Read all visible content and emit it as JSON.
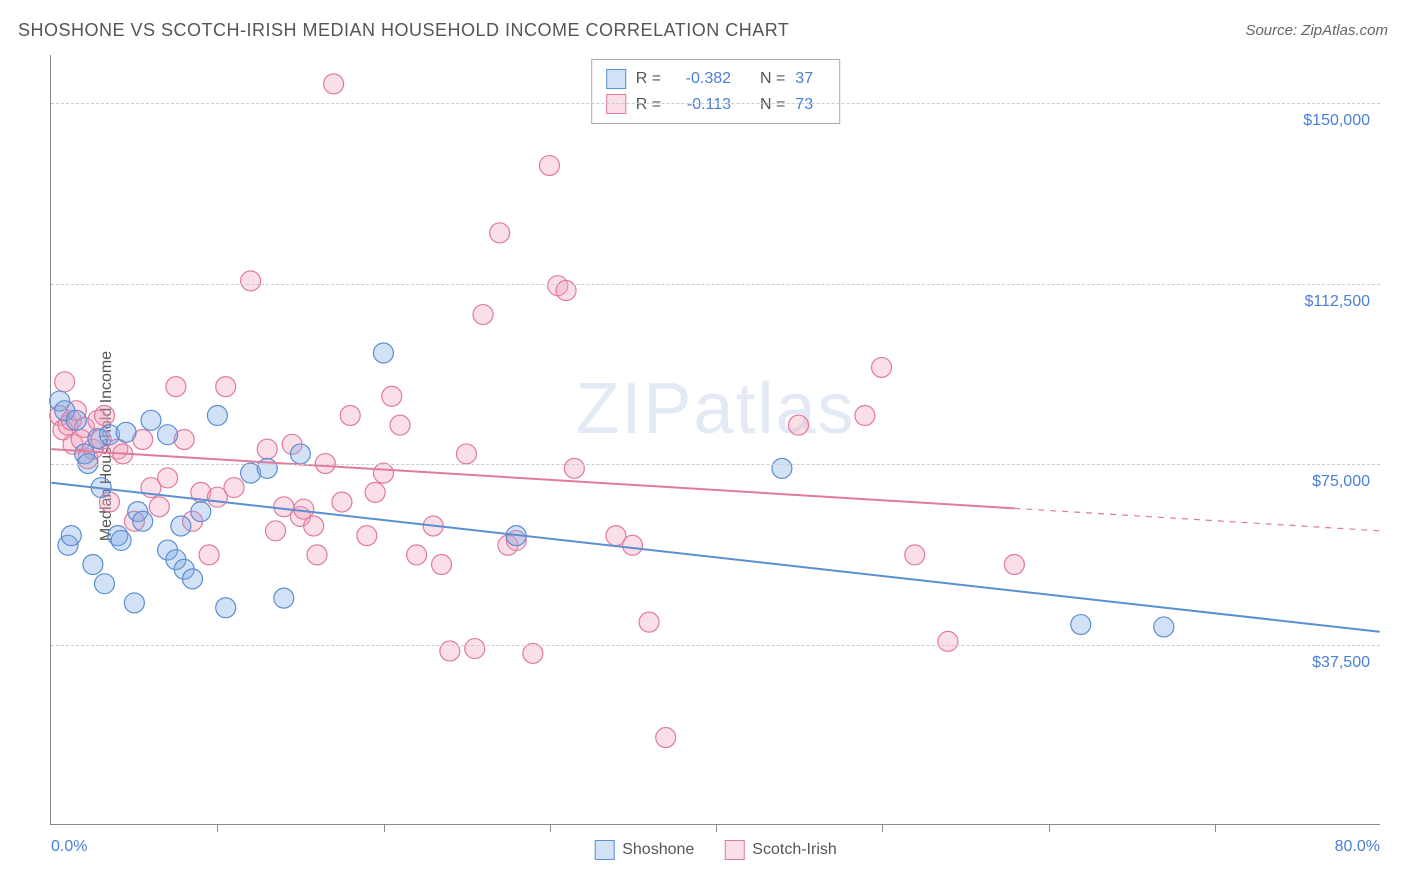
{
  "title": "SHOSHONE VS SCOTCH-IRISH MEDIAN HOUSEHOLD INCOME CORRELATION CHART",
  "source": "Source: ZipAtlas.com",
  "y_axis_label": "Median Household Income",
  "watermark": "ZIPatlas",
  "chart": {
    "type": "scatter",
    "xlim": [
      0,
      80
    ],
    "ylim": [
      0,
      160000
    ],
    "x_start_label": "0.0%",
    "x_end_label": "80.0%",
    "x_tick_step": 10,
    "y_ticks": [
      37500,
      75000,
      112500,
      150000
    ],
    "y_tick_labels": [
      "$37,500",
      "$75,000",
      "$112,500",
      "$150,000"
    ],
    "grid_color": "#cccccc",
    "background_color": "#ffffff",
    "axis_color": "#888888",
    "tick_label_color": "#4a7fd8",
    "marker_radius": 10,
    "marker_stroke_width": 1.2,
    "line_width": 2,
    "series": [
      {
        "name": "Shoshone",
        "fill": "rgba(130,170,230,0.35)",
        "stroke": "#5a8fd0",
        "R": "-0.382",
        "N": "37",
        "trend": {
          "y_at_x0": 71000,
          "y_at_x80": 40000,
          "solid_until_x": 80,
          "dashed": false
        },
        "points": [
          [
            0.5,
            88000
          ],
          [
            0.8,
            86000
          ],
          [
            1,
            58000
          ],
          [
            1.2,
            60000
          ],
          [
            1.5,
            84000
          ],
          [
            2,
            77000
          ],
          [
            2.2,
            75000
          ],
          [
            2.5,
            54000
          ],
          [
            2.8,
            80200
          ],
          [
            3,
            70000
          ],
          [
            3.2,
            50000
          ],
          [
            3.5,
            81000
          ],
          [
            4,
            60000
          ],
          [
            4.2,
            59000
          ],
          [
            4.5,
            81500
          ],
          [
            5,
            46000
          ],
          [
            5.2,
            65000
          ],
          [
            5.5,
            63000
          ],
          [
            6,
            84000
          ],
          [
            7,
            81000
          ],
          [
            7,
            57000
          ],
          [
            7.5,
            55000
          ],
          [
            7.8,
            62000
          ],
          [
            8,
            53000
          ],
          [
            8.5,
            51000
          ],
          [
            9,
            65000
          ],
          [
            10,
            85000
          ],
          [
            10.5,
            45000
          ],
          [
            12,
            73000
          ],
          [
            13,
            74000
          ],
          [
            14,
            47000
          ],
          [
            15,
            77000
          ],
          [
            20,
            98000
          ],
          [
            28,
            60000
          ],
          [
            44,
            74000
          ],
          [
            62,
            41500
          ],
          [
            67,
            41000
          ]
        ]
      },
      {
        "name": "Scotch-Irish",
        "fill": "rgba(240,160,190,0.35)",
        "stroke": "#e17a9c",
        "R": "-0.113",
        "N": "73",
        "trend": {
          "y_at_x0": 78000,
          "y_at_x80": 61000,
          "solid_until_x": 58,
          "dashed": true
        },
        "points": [
          [
            0.5,
            85000
          ],
          [
            0.7,
            82000
          ],
          [
            0.8,
            92000
          ],
          [
            1,
            83000
          ],
          [
            1.2,
            84000
          ],
          [
            1.3,
            79000
          ],
          [
            1.5,
            86000
          ],
          [
            1.8,
            80000
          ],
          [
            2,
            82500
          ],
          [
            2.2,
            76000
          ],
          [
            2.5,
            78000
          ],
          [
            2.8,
            84000
          ],
          [
            3,
            80000
          ],
          [
            3.2,
            85000
          ],
          [
            3.5,
            67000
          ],
          [
            4,
            78000
          ],
          [
            4.3,
            77000
          ],
          [
            5,
            63000
          ],
          [
            5.5,
            80000
          ],
          [
            6,
            70000
          ],
          [
            6.5,
            66000
          ],
          [
            7,
            72000
          ],
          [
            7.5,
            91000
          ],
          [
            8,
            80000
          ],
          [
            8.5,
            63000
          ],
          [
            9,
            69000
          ],
          [
            9.5,
            56000
          ],
          [
            10,
            68000
          ],
          [
            10.5,
            91000
          ],
          [
            11,
            70000
          ],
          [
            12,
            113000
          ],
          [
            13,
            78000
          ],
          [
            13.5,
            61000
          ],
          [
            14,
            66000
          ],
          [
            14.5,
            79000
          ],
          [
            15,
            64000
          ],
          [
            15.2,
            65500
          ],
          [
            15.8,
            62000
          ],
          [
            16,
            56000
          ],
          [
            16.5,
            75000
          ],
          [
            17,
            154000
          ],
          [
            17.5,
            67000
          ],
          [
            18,
            85000
          ],
          [
            19,
            60000
          ],
          [
            19.5,
            69000
          ],
          [
            20,
            73000
          ],
          [
            20.5,
            89000
          ],
          [
            21,
            83000
          ],
          [
            22,
            56000
          ],
          [
            23,
            62000
          ],
          [
            23.5,
            54000
          ],
          [
            24,
            36000
          ],
          [
            25,
            77000
          ],
          [
            25.5,
            36500
          ],
          [
            26,
            106000
          ],
          [
            27,
            123000
          ],
          [
            27.5,
            58000
          ],
          [
            28,
            59000
          ],
          [
            29,
            35500
          ],
          [
            30,
            137000
          ],
          [
            30.5,
            112000
          ],
          [
            31,
            111000
          ],
          [
            31.5,
            74000
          ],
          [
            34,
            60000
          ],
          [
            35,
            58000
          ],
          [
            36,
            42000
          ],
          [
            37,
            18000
          ],
          [
            45,
            83000
          ],
          [
            49,
            85000
          ],
          [
            50,
            95000
          ],
          [
            52,
            56000
          ],
          [
            54,
            38000
          ],
          [
            58,
            54000
          ]
        ]
      }
    ]
  },
  "legend": {
    "series_label_1": "Shoshone",
    "series_label_2": "Scotch-Irish",
    "R_label": "R =",
    "N_label": "N ="
  }
}
